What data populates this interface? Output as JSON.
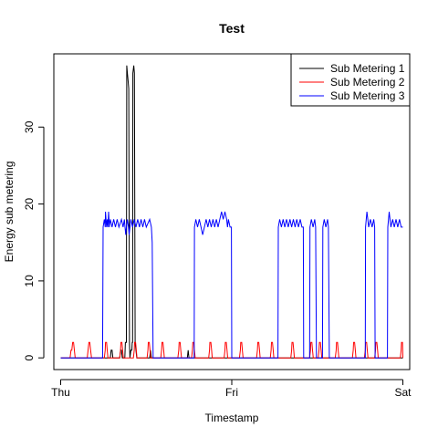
{
  "chart_data": {
    "type": "line",
    "title": "Test",
    "xlabel": "Timestamp",
    "ylabel": "Energy sub metering",
    "x_ticks": [
      {
        "value": 0,
        "label": "Thu"
      },
      {
        "value": 1,
        "label": "Fri"
      },
      {
        "value": 2,
        "label": "Sat"
      }
    ],
    "y_ticks": [
      0,
      10,
      20,
      30
    ],
    "xlim": [
      -0.04,
      2.04
    ],
    "ylim": [
      -1.52,
      39.52
    ],
    "legend_position": "top-right",
    "grid": false,
    "series": [
      {
        "name": "Sub Metering 1",
        "color": "#000000",
        "points": [
          [
            0,
            0
          ],
          [
            0.29,
            0
          ],
          [
            0.295,
            1
          ],
          [
            0.3,
            1
          ],
          [
            0.305,
            0
          ],
          [
            0.345,
            0
          ],
          [
            0.35,
            1
          ],
          [
            0.355,
            1
          ],
          [
            0.36,
            0
          ],
          [
            0.375,
            0
          ],
          [
            0.378,
            2
          ],
          [
            0.384,
            2
          ],
          [
            0.386,
            38
          ],
          [
            0.39,
            37
          ],
          [
            0.394,
            36
          ],
          [
            0.398,
            35
          ],
          [
            0.402,
            2
          ],
          [
            0.405,
            0
          ],
          [
            0.41,
            1
          ],
          [
            0.416,
            1
          ],
          [
            0.418,
            2
          ],
          [
            0.42,
            2
          ],
          [
            0.422,
            37
          ],
          [
            0.427,
            38
          ],
          [
            0.431,
            37
          ],
          [
            0.435,
            2
          ],
          [
            0.44,
            1
          ],
          [
            0.445,
            0
          ],
          [
            0.52,
            0
          ],
          [
            0.525,
            1
          ],
          [
            0.53,
            0
          ],
          [
            0.74,
            0
          ],
          [
            0.745,
            1
          ],
          [
            0.75,
            0
          ],
          [
            2.0,
            0
          ]
        ]
      },
      {
        "name": "Sub Metering 2",
        "color": "#ff0000",
        "points": [
          [
            0,
            0
          ],
          [
            0.055,
            0
          ],
          [
            0.06,
            1
          ],
          [
            0.065,
            1
          ],
          [
            0.07,
            2
          ],
          [
            0.075,
            2
          ],
          [
            0.08,
            1
          ],
          [
            0.085,
            0
          ],
          [
            0.155,
            0
          ],
          [
            0.16,
            1
          ],
          [
            0.165,
            2
          ],
          [
            0.17,
            2
          ],
          [
            0.175,
            1
          ],
          [
            0.18,
            0
          ],
          [
            0.255,
            0
          ],
          [
            0.26,
            1
          ],
          [
            0.262,
            2
          ],
          [
            0.268,
            2
          ],
          [
            0.272,
            1
          ],
          [
            0.276,
            0
          ],
          [
            0.345,
            0
          ],
          [
            0.35,
            1
          ],
          [
            0.352,
            2
          ],
          [
            0.358,
            2
          ],
          [
            0.362,
            1
          ],
          [
            0.366,
            0
          ],
          [
            0.425,
            0
          ],
          [
            0.43,
            1
          ],
          [
            0.432,
            2
          ],
          [
            0.438,
            2
          ],
          [
            0.442,
            1
          ],
          [
            0.446,
            0
          ],
          [
            0.505,
            0
          ],
          [
            0.51,
            1
          ],
          [
            0.512,
            2
          ],
          [
            0.518,
            2
          ],
          [
            0.522,
            1
          ],
          [
            0.526,
            0
          ],
          [
            0.585,
            0
          ],
          [
            0.59,
            1
          ],
          [
            0.592,
            2
          ],
          [
            0.598,
            2
          ],
          [
            0.602,
            1
          ],
          [
            0.606,
            0
          ],
          [
            0.685,
            0
          ],
          [
            0.69,
            1
          ],
          [
            0.692,
            2
          ],
          [
            0.698,
            2
          ],
          [
            0.702,
            1
          ],
          [
            0.706,
            0
          ],
          [
            0.765,
            0
          ],
          [
            0.77,
            1
          ],
          [
            0.772,
            2
          ],
          [
            0.778,
            2
          ],
          [
            0.782,
            1
          ],
          [
            0.786,
            0
          ],
          [
            0.865,
            0
          ],
          [
            0.87,
            1
          ],
          [
            0.872,
            2
          ],
          [
            0.878,
            2
          ],
          [
            0.882,
            1
          ],
          [
            0.886,
            0
          ],
          [
            0.955,
            0
          ],
          [
            0.96,
            1
          ],
          [
            0.962,
            2
          ],
          [
            0.968,
            2
          ],
          [
            0.972,
            1
          ],
          [
            0.976,
            0
          ],
          [
            1.045,
            0
          ],
          [
            1.05,
            1
          ],
          [
            1.052,
            2
          ],
          [
            1.058,
            2
          ],
          [
            1.062,
            1
          ],
          [
            1.066,
            0
          ],
          [
            1.145,
            0
          ],
          [
            1.15,
            1
          ],
          [
            1.152,
            2
          ],
          [
            1.158,
            2
          ],
          [
            1.162,
            1
          ],
          [
            1.166,
            0
          ],
          [
            1.225,
            0
          ],
          [
            1.23,
            1
          ],
          [
            1.232,
            2
          ],
          [
            1.238,
            2
          ],
          [
            1.242,
            1
          ],
          [
            1.246,
            0
          ],
          [
            1.345,
            0
          ],
          [
            1.35,
            1
          ],
          [
            1.352,
            2
          ],
          [
            1.358,
            2
          ],
          [
            1.362,
            1
          ],
          [
            1.366,
            0
          ],
          [
            1.455,
            0
          ],
          [
            1.46,
            1
          ],
          [
            1.462,
            2
          ],
          [
            1.468,
            2
          ],
          [
            1.472,
            1
          ],
          [
            1.476,
            0
          ],
          [
            1.505,
            0
          ],
          [
            1.51,
            1
          ],
          [
            1.512,
            2
          ],
          [
            1.518,
            2
          ],
          [
            1.522,
            1
          ],
          [
            1.526,
            0
          ],
          [
            1.605,
            0
          ],
          [
            1.61,
            1
          ],
          [
            1.612,
            2
          ],
          [
            1.618,
            2
          ],
          [
            1.622,
            1
          ],
          [
            1.626,
            0
          ],
          [
            1.705,
            0
          ],
          [
            1.71,
            1
          ],
          [
            1.712,
            2
          ],
          [
            1.718,
            2
          ],
          [
            1.722,
            1
          ],
          [
            1.726,
            0
          ],
          [
            1.775,
            0
          ],
          [
            1.78,
            1
          ],
          [
            1.782,
            2
          ],
          [
            1.788,
            2
          ],
          [
            1.792,
            1
          ],
          [
            1.796,
            0
          ],
          [
            1.835,
            0
          ],
          [
            1.84,
            1
          ],
          [
            1.842,
            2
          ],
          [
            1.848,
            2
          ],
          [
            1.852,
            1
          ],
          [
            1.856,
            0
          ],
          [
            1.985,
            0
          ],
          [
            1.99,
            1
          ],
          [
            1.992,
            2
          ],
          [
            1.998,
            2
          ],
          [
            2.0,
            0
          ]
        ]
      },
      {
        "name": "Sub Metering 3",
        "color": "#0000ff",
        "points": [
          [
            0,
            0
          ],
          [
            0.245,
            0
          ],
          [
            0.248,
            17
          ],
          [
            0.255,
            18
          ],
          [
            0.26,
            17
          ],
          [
            0.262,
            19
          ],
          [
            0.268,
            17
          ],
          [
            0.272,
            18
          ],
          [
            0.276,
            17
          ],
          [
            0.28,
            19
          ],
          [
            0.285,
            17
          ],
          [
            0.29,
            18
          ],
          [
            0.3,
            17
          ],
          [
            0.31,
            18
          ],
          [
            0.32,
            17
          ],
          [
            0.33,
            18
          ],
          [
            0.34,
            17
          ],
          [
            0.355,
            18
          ],
          [
            0.365,
            17
          ],
          [
            0.372,
            18
          ],
          [
            0.376,
            17
          ],
          [
            0.38,
            16
          ],
          [
            0.384,
            17
          ],
          [
            0.39,
            18
          ],
          [
            0.396,
            17
          ],
          [
            0.4,
            16
          ],
          [
            0.405,
            17
          ],
          [
            0.41,
            18
          ],
          [
            0.42,
            17
          ],
          [
            0.43,
            18
          ],
          [
            0.44,
            17
          ],
          [
            0.45,
            18
          ],
          [
            0.46,
            17
          ],
          [
            0.47,
            18
          ],
          [
            0.48,
            17
          ],
          [
            0.49,
            18
          ],
          [
            0.5,
            17
          ],
          [
            0.52,
            18
          ],
          [
            0.53,
            17
          ],
          [
            0.535,
            15
          ],
          [
            0.54,
            0
          ],
          [
            0.78,
            0
          ],
          [
            0.782,
            17
          ],
          [
            0.79,
            18
          ],
          [
            0.8,
            17
          ],
          [
            0.81,
            18
          ],
          [
            0.82,
            17
          ],
          [
            0.83,
            16
          ],
          [
            0.84,
            17
          ],
          [
            0.85,
            18
          ],
          [
            0.86,
            17
          ],
          [
            0.87,
            18
          ],
          [
            0.88,
            17
          ],
          [
            0.89,
            18
          ],
          [
            0.9,
            17
          ],
          [
            0.91,
            18
          ],
          [
            0.92,
            17
          ],
          [
            0.93,
            18
          ],
          [
            0.94,
            19
          ],
          [
            0.95,
            18
          ],
          [
            0.96,
            19
          ],
          [
            0.97,
            18
          ],
          [
            0.975,
            17
          ],
          [
            0.98,
            18
          ],
          [
            0.99,
            17
          ],
          [
            0.998,
            17
          ],
          [
            1.0,
            0
          ],
          [
            1.27,
            0
          ],
          [
            1.272,
            17
          ],
          [
            1.28,
            18
          ],
          [
            1.29,
            17
          ],
          [
            1.3,
            18
          ],
          [
            1.31,
            17
          ],
          [
            1.32,
            18
          ],
          [
            1.33,
            17
          ],
          [
            1.34,
            18
          ],
          [
            1.35,
            17
          ],
          [
            1.36,
            18
          ],
          [
            1.37,
            17
          ],
          [
            1.38,
            18
          ],
          [
            1.39,
            17
          ],
          [
            1.4,
            18
          ],
          [
            1.41,
            17
          ],
          [
            1.418,
            17
          ],
          [
            1.42,
            0
          ],
          [
            1.455,
            0
          ],
          [
            1.457,
            17
          ],
          [
            1.465,
            18
          ],
          [
            1.475,
            17
          ],
          [
            1.485,
            18
          ],
          [
            1.49,
            17
          ],
          [
            1.495,
            0
          ],
          [
            1.53,
            0
          ],
          [
            1.532,
            17
          ],
          [
            1.54,
            18
          ],
          [
            1.55,
            17
          ],
          [
            1.56,
            18
          ],
          [
            1.565,
            17
          ],
          [
            1.57,
            0
          ],
          [
            1.78,
            0
          ],
          [
            1.782,
            17
          ],
          [
            1.79,
            19
          ],
          [
            1.795,
            18
          ],
          [
            1.8,
            17
          ],
          [
            1.81,
            18
          ],
          [
            1.82,
            17
          ],
          [
            1.83,
            18
          ],
          [
            1.835,
            17
          ],
          [
            1.838,
            0
          ],
          [
            1.91,
            0
          ],
          [
            1.912,
            17
          ],
          [
            1.92,
            19
          ],
          [
            1.925,
            18
          ],
          [
            1.93,
            17
          ],
          [
            1.94,
            18
          ],
          [
            1.95,
            17
          ],
          [
            1.96,
            18
          ],
          [
            1.97,
            17
          ],
          [
            1.98,
            18
          ],
          [
            1.99,
            17
          ],
          [
            2.0,
            17
          ]
        ]
      }
    ]
  }
}
